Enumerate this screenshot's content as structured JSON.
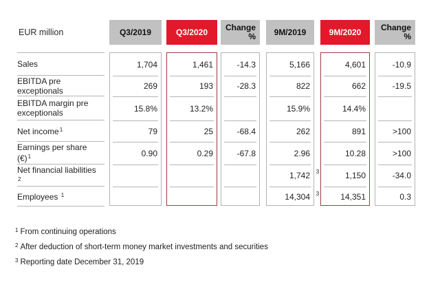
{
  "colors": {
    "accent_red": "#e2192b",
    "header_gray": "#c1c1c1",
    "border_light": "#b2b2b2",
    "border_dark_red": "#9b3a41"
  },
  "table": {
    "unit_label": "EUR million",
    "columns": [
      {
        "id": "q3-2019",
        "label": "Q3/2019",
        "style": "gray"
      },
      {
        "id": "q3-2020",
        "label": "Q3/2020",
        "style": "red"
      },
      {
        "id": "change-q3",
        "label": "Change\n%",
        "style": "gray",
        "change": true
      },
      {
        "id": "9m-2019",
        "label": "9M/2019",
        "style": "gray"
      },
      {
        "id": "9m-2020",
        "label": "9M/2020",
        "style": "red"
      },
      {
        "id": "change-9m",
        "label": "Change\n%",
        "style": "gray",
        "change": true
      }
    ],
    "rows": [
      {
        "label": "Sales",
        "sup": "",
        "values": [
          "1,704",
          "1,461",
          "-14.3",
          "5,166",
          "4,601",
          "-10.9"
        ]
      },
      {
        "label": "EBITDA pre exceptionals",
        "sup": "",
        "values": [
          "269",
          "193",
          "-28.3",
          "822",
          "662",
          "-19.5"
        ]
      },
      {
        "label": "EBITDA margin pre exceptionals",
        "sup": "",
        "values": [
          "15.8%",
          "13.2%",
          "",
          "15.9%",
          "14.4%",
          ""
        ]
      },
      {
        "label": "Net income",
        "sup": "1",
        "values": [
          "79",
          "25",
          "-68.4",
          "262",
          "891",
          ">100"
        ]
      },
      {
        "label": "Earnings per share (€)",
        "sup": "1",
        "values": [
          "0.90",
          "0.29",
          "-67.8",
          "2.96",
          "10.28",
          ">100"
        ]
      },
      {
        "label": "Net financial liabilities ",
        "sup": "2",
        "values": [
          "",
          "",
          "",
          "1,742",
          "1,150",
          "-34.0"
        ]
      },
      {
        "label": "Employees ",
        "sup": "1",
        "values": [
          "",
          "",
          "",
          "14,304",
          "14,351",
          "0.3"
        ]
      }
    ],
    "gap_markers": [
      {
        "row_index": 5,
        "text": "3"
      },
      {
        "row_index": 6,
        "text": "3"
      }
    ]
  },
  "footnotes": [
    {
      "sup": "1",
      "text": "From continuing operations"
    },
    {
      "sup": "2",
      "text": "After deduction of short-term money market investments and securities"
    },
    {
      "sup": "3",
      "text": "Reporting date December 31, 2019"
    }
  ]
}
